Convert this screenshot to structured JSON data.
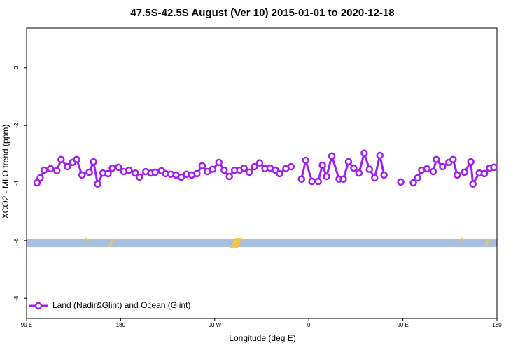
{
  "chart_data": {
    "type": "line",
    "title": "47.5S-42.5S August (Ver 10)   2015-01-01 to 2020-12-18",
    "x_label": "Longitude (deg E)",
    "y_label": "XCO2 - MLO trend (ppm)",
    "xlim": [
      90,
      540
    ],
    "ylim": [
      -8.7,
      1.38
    ],
    "xticks": [
      {
        "value": 90,
        "label": "90 E"
      },
      180,
      {
        "value": 270,
        "label": "90 W"
      },
      {
        "value": 360,
        "label": "0"
      },
      {
        "value": 450,
        "label": "90 E"
      },
      {
        "value": 540,
        "label": "180"
      }
    ],
    "yticks": [
      0,
      -2,
      -4,
      -6,
      -8
    ],
    "legend": "bottom-left",
    "x": [
      100,
      103,
      107,
      113,
      119,
      123,
      129,
      134,
      138,
      143,
      150,
      154,
      158,
      163,
      168,
      172,
      178,
      183,
      188,
      194,
      198,
      204,
      209,
      213,
      219,
      223,
      228,
      233,
      238,
      243,
      248,
      253,
      258,
      263,
      268,
      274,
      279,
      284,
      289,
      294,
      298,
      303,
      308,
      313,
      318,
      323,
      328,
      332,
      338,
      343,
      348,
      353,
      357,
      363,
      369,
      373,
      377,
      382,
      389,
      393,
      398,
      403,
      408,
      413,
      418,
      423,
      428,
      432,
      437,
      448,
      452,
      460,
      464,
      468,
      473,
      479,
      482,
      488,
      494,
      498,
      502,
      509,
      515,
      517,
      523,
      528,
      533,
      537
    ],
    "series": [
      {
        "name": "Land (Nadir&Glint) and Ocean (Glint)",
        "color": "#a020f0",
        "values": [
          -3.99,
          -3.82,
          -3.55,
          -3.5,
          -3.57,
          -3.18,
          -3.43,
          -3.28,
          -3.18,
          -3.72,
          -3.62,
          -3.26,
          -4.03,
          -3.65,
          -3.67,
          -3.48,
          -3.45,
          -3.6,
          -3.55,
          -3.65,
          -3.79,
          -3.6,
          -3.65,
          -3.62,
          -3.57,
          -3.67,
          -3.69,
          -3.72,
          -3.79,
          -3.69,
          -3.72,
          -3.67,
          -3.4,
          -3.6,
          -3.52,
          -3.28,
          -3.55,
          -3.77,
          -3.55,
          -3.55,
          -3.48,
          -3.62,
          -3.43,
          -3.3,
          -3.5,
          -3.48,
          -3.55,
          -3.67,
          -3.5,
          -3.43,
          null,
          -3.86,
          -3.21,
          -3.94,
          -3.94,
          -3.38,
          -3.77,
          -3.06,
          -3.86,
          -3.86,
          -3.26,
          -3.48,
          -3.65,
          -2.96,
          -3.52,
          -3.82,
          -3.04,
          -3.72,
          null,
          -3.96,
          null,
          -3.99,
          -3.82,
          -3.55,
          -3.5,
          -3.6,
          -3.18,
          -3.43,
          -3.28,
          -3.18,
          -3.72,
          -3.62,
          -3.26,
          -4.03,
          -3.65,
          -3.67,
          -3.48,
          -3.45
        ]
      }
    ]
  }
}
